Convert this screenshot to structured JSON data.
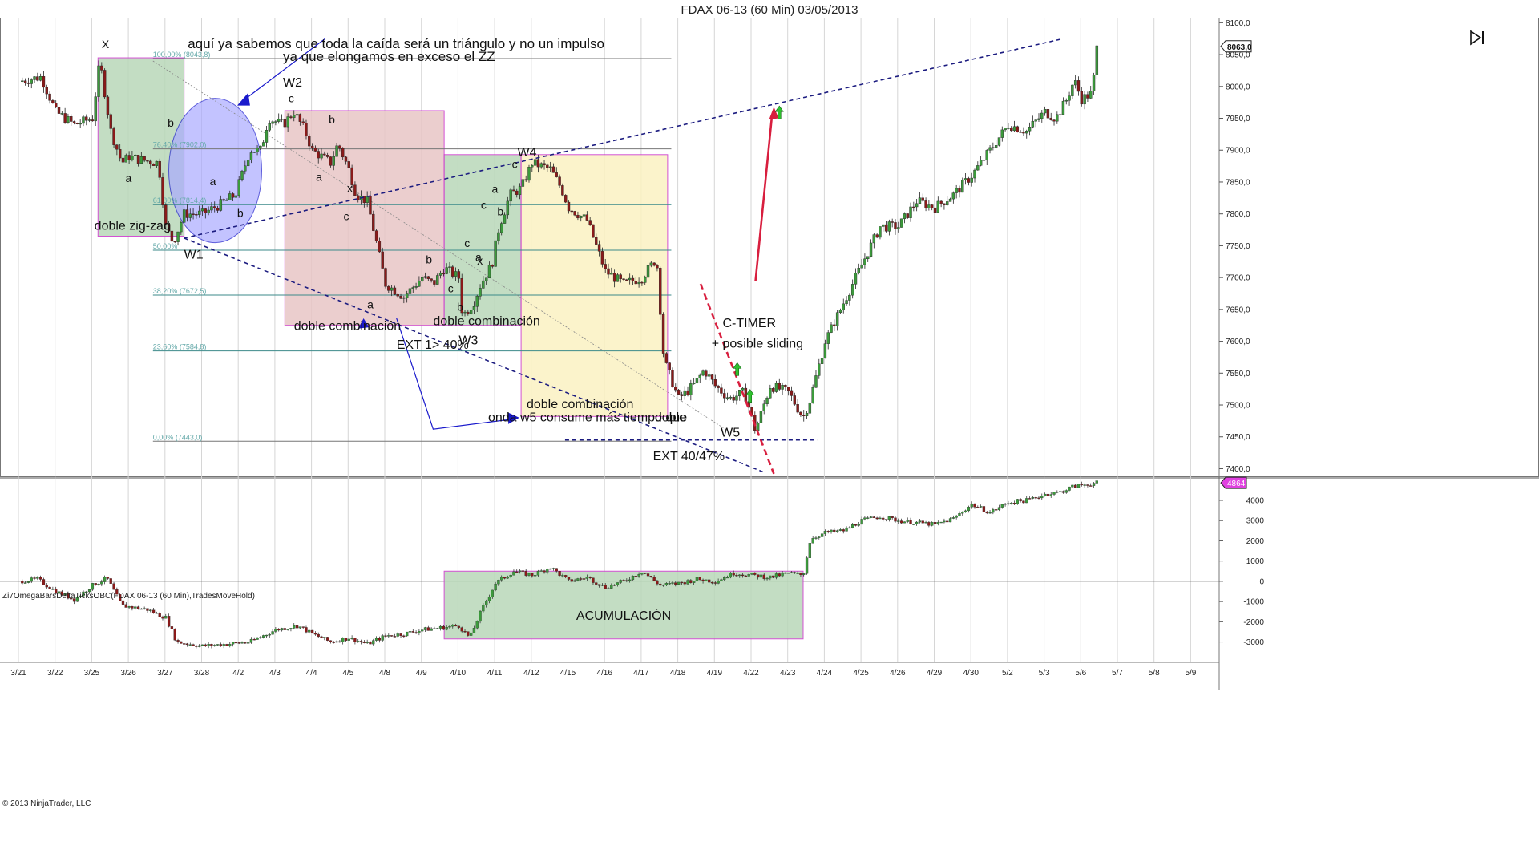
{
  "window": {
    "title": "FDAX 06-13 (60 Min)  03/05/2013",
    "indicator_label": "Zi7OmegaBarsDeltaTicksOBC(FDAX 06-13 (60 Min),TradesMoveHold)",
    "copyright": "© 2013 NinjaTrader, LLC",
    "play_icon": "skip-to-end-icon"
  },
  "colors": {
    "grid": "#d6d6d6",
    "up_candle": "#3c9a3c",
    "down_candle": "#8a1a1a",
    "wick": "#222222",
    "fib": "#3b8a8a",
    "trend_dash": "#1c1c80",
    "blue_arrow": "#1a1acc",
    "red": "#d81e3e",
    "box_border": "#cc33cc",
    "box_green": "#b9d8b9",
    "box_red": "#e8c6c6",
    "box_yellow": "#fbf2c2",
    "box_blue": "#aaaaff",
    "price_tag_fill": "#ffffff",
    "ind_tag_fill": "#e040e0"
  },
  "chart_data": [
    {
      "type": "candlestick",
      "title": "FDAX 06-13 (60 Min)  03/05/2013",
      "x_ticks": [
        "3/21",
        "3/22",
        "3/25",
        "3/26",
        "3/27",
        "3/28",
        "4/2",
        "4/3",
        "4/4",
        "4/5",
        "4/8",
        "4/9",
        "4/10",
        "4/11",
        "4/12",
        "4/15",
        "4/16",
        "4/17",
        "4/18",
        "4/19",
        "4/22",
        "4/23",
        "4/24",
        "4/25",
        "4/26",
        "4/29",
        "4/30",
        "5/2",
        "5/3",
        "5/6",
        "5/7",
        "5/8",
        "5/9"
      ],
      "y_ticks": [
        "8100,0",
        "8050,0",
        "8000,0",
        "7950,0",
        "7900,0",
        "7850,0",
        "7800,0",
        "7750,0",
        "7700,0",
        "7650,0",
        "7600,0",
        "7550,0",
        "7500,0",
        "7450,0",
        "7400,0"
      ],
      "ylim": [
        7388,
        8108
      ],
      "last_price": "8063,0",
      "series_close_path": [
        [
          0,
          8008
        ],
        [
          0.6,
          8015
        ],
        [
          1,
          7960
        ],
        [
          1.5,
          7940
        ],
        [
          2,
          7950
        ],
        [
          2.2,
          8040
        ],
        [
          2.5,
          7930
        ],
        [
          2.8,
          7880
        ],
        [
          3,
          7890
        ],
        [
          3.3,
          7885
        ],
        [
          3.8,
          7880
        ],
        [
          4,
          7780
        ],
        [
          4.2,
          7755
        ],
        [
          4.5,
          7800
        ],
        [
          5,
          7800
        ],
        [
          5.5,
          7815
        ],
        [
          5.9,
          7830
        ],
        [
          6.3,
          7900
        ],
        [
          6.6,
          7900
        ],
        [
          6.8,
          7950
        ],
        [
          7.2,
          7940
        ],
        [
          7.5,
          7960
        ],
        [
          7.8,
          7930
        ],
        [
          8,
          7900
        ],
        [
          8.5,
          7880
        ],
        [
          8.7,
          7910
        ],
        [
          9,
          7870
        ],
        [
          9.2,
          7830
        ],
        [
          9.5,
          7820
        ],
        [
          10,
          7690
        ],
        [
          10.5,
          7670
        ],
        [
          11,
          7700
        ],
        [
          11.3,
          7690
        ],
        [
          11.6,
          7715
        ],
        [
          12,
          7700
        ],
        [
          12.1,
          7640
        ],
        [
          12.4,
          7660
        ],
        [
          12.6,
          7690
        ],
        [
          12.9,
          7720
        ],
        [
          13.1,
          7780
        ],
        [
          13.4,
          7830
        ],
        [
          13.7,
          7840
        ],
        [
          14,
          7880
        ],
        [
          14.5,
          7870
        ],
        [
          14.8,
          7840
        ],
        [
          15,
          7810
        ],
        [
          15.5,
          7790
        ],
        [
          16,
          7710
        ],
        [
          16.5,
          7690
        ],
        [
          17,
          7700
        ],
        [
          17.4,
          7730
        ],
        [
          17.6,
          7570
        ],
        [
          18,
          7510
        ],
        [
          18.4,
          7530
        ],
        [
          18.7,
          7555
        ],
        [
          19,
          7530
        ],
        [
          19.4,
          7510
        ],
        [
          19.8,
          7520
        ],
        [
          20.1,
          7460
        ],
        [
          20.5,
          7530
        ],
        [
          21,
          7520
        ],
        [
          21.4,
          7480
        ],
        [
          21.6,
          7510
        ],
        [
          22,
          7600
        ],
        [
          22.5,
          7660
        ],
        [
          23,
          7720
        ],
        [
          23.5,
          7780
        ],
        [
          24,
          7780
        ],
        [
          24.5,
          7820
        ],
        [
          25,
          7810
        ],
        [
          25.5,
          7830
        ],
        [
          26,
          7860
        ],
        [
          26.5,
          7900
        ],
        [
          27,
          7940
        ],
        [
          27.5,
          7930
        ],
        [
          28,
          7960
        ],
        [
          28.3,
          7950
        ],
        [
          28.6,
          7980
        ],
        [
          28.8,
          8010
        ],
        [
          29,
          7980
        ],
        [
          29.3,
          7990
        ],
        [
          29.4,
          8060
        ]
      ],
      "fibonacci_levels": [
        {
          "label": "100,00% (8043,8)",
          "value": 8043.8
        },
        {
          "label": "76,40% (7902,0)",
          "value": 7902.0
        },
        {
          "label": "61,80% (7814,4)",
          "value": 7814.4
        },
        {
          "label": "50,00% ",
          "value": 7743.0
        },
        {
          "label": "38,20% (7672,5)",
          "value": 7672.5
        },
        {
          "label": "23,60% (7584,8)",
          "value": 7584.8
        },
        {
          "label": "0,00% (7443,0)",
          "value": 7443.0
        }
      ],
      "annotations": {
        "wave_labels": [
          "X",
          "a",
          "b",
          "W1",
          "a",
          "b",
          "W2",
          "c",
          "b",
          "a",
          "x",
          "c",
          "a",
          "b",
          "c",
          "W3",
          "b",
          "c",
          "a",
          "x",
          "c",
          "a",
          "b",
          "W4",
          "c",
          "W5"
        ],
        "notes": [
          "aquí ya sabemos que toda la caída será un triángulo y no un impulso",
          "ya que elongamos en exceso el ZZ",
          "doble zig-zag",
          "doble combinación",
          "doble combinación",
          "EXT 1> 40%",
          "doble combinación",
          "onda w5 consume más tiempo que",
          "doble",
          "EXT 40/47%",
          "C-TIMER",
          "+ posible sliding"
        ]
      }
    },
    {
      "type": "line",
      "title": "Zi7OmegaBarsDeltaTicksOBC(FDAX 06-13 (60 Min),TradesMoveHold)",
      "y_ticks": [
        "4000",
        "3000",
        "2000",
        "1000",
        "0",
        "-1000",
        "-2000",
        "-3000"
      ],
      "ylim": [
        -3850,
        4950
      ],
      "last_value": "4864",
      "series_path": [
        [
          0,
          0
        ],
        [
          0.5,
          100
        ],
        [
          1,
          -500
        ],
        [
          1.5,
          -900
        ],
        [
          2,
          -200
        ],
        [
          2.4,
          150
        ],
        [
          2.8,
          -1200
        ],
        [
          3.5,
          -1400
        ],
        [
          4,
          -1800
        ],
        [
          4.3,
          -3000
        ],
        [
          5,
          -3200
        ],
        [
          5.7,
          -3100
        ],
        [
          6.3,
          -3000
        ],
        [
          7,
          -2400
        ],
        [
          7.6,
          -2200
        ],
        [
          8,
          -2600
        ],
        [
          8.5,
          -3000
        ],
        [
          9,
          -2800
        ],
        [
          9.5,
          -3100
        ],
        [
          10,
          -2700
        ],
        [
          10.5,
          -2600
        ],
        [
          11,
          -2400
        ],
        [
          11.5,
          -2300
        ],
        [
          12,
          -2200
        ],
        [
          12.3,
          -2800
        ],
        [
          12.6,
          -1500
        ],
        [
          13,
          -100
        ],
        [
          13.5,
          500
        ],
        [
          14,
          300
        ],
        [
          14.5,
          700
        ],
        [
          15,
          0
        ],
        [
          15.5,
          200
        ],
        [
          16,
          -300
        ],
        [
          16.5,
          0
        ],
        [
          17,
          500
        ],
        [
          17.5,
          -200
        ],
        [
          18,
          -100
        ],
        [
          18.5,
          100
        ],
        [
          19,
          0
        ],
        [
          19.5,
          400
        ],
        [
          20,
          300
        ],
        [
          20.5,
          200
        ],
        [
          21,
          400
        ],
        [
          21.4,
          300
        ],
        [
          21.6,
          2100
        ],
        [
          22,
          2400
        ],
        [
          22.5,
          2500
        ],
        [
          23,
          3000
        ],
        [
          23.5,
          3200
        ],
        [
          24,
          3000
        ],
        [
          24.5,
          2900
        ],
        [
          25,
          2800
        ],
        [
          25.5,
          3100
        ],
        [
          26,
          3800
        ],
        [
          26.5,
          3400
        ],
        [
          27,
          3900
        ],
        [
          27.5,
          4000
        ],
        [
          28,
          4300
        ],
        [
          28.4,
          4400
        ],
        [
          28.8,
          4700
        ],
        [
          29.4,
          4864
        ]
      ],
      "annotations": {
        "notes": [
          "ACUMULACIÓN"
        ]
      }
    }
  ]
}
